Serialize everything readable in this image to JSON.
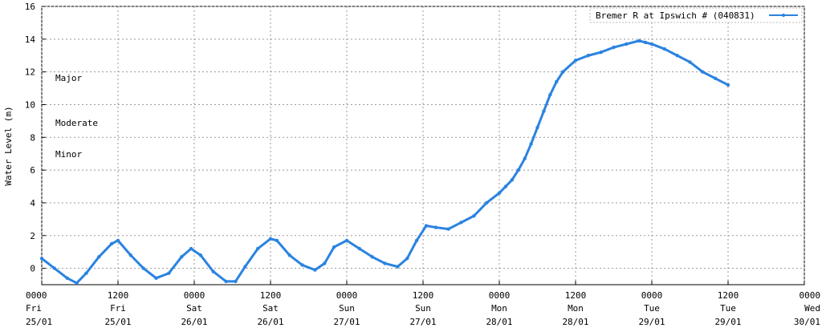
{
  "chart_data": {
    "type": "line",
    "ylabel": "Water Level (m)",
    "xlabel": "",
    "ylim": [
      -1,
      16
    ],
    "yticks": [
      0,
      2,
      4,
      6,
      8,
      10,
      12,
      14,
      16
    ],
    "xlim_hours": [
      0,
      120
    ],
    "grid": true,
    "legend_position": "top-right",
    "series_color": "#2a83e0",
    "xtick_hours": [
      0,
      12,
      24,
      36,
      48,
      60,
      72,
      84,
      96,
      108,
      120
    ],
    "xticks": [
      {
        "time": "0000",
        "day": "Fri",
        "date": "25/01"
      },
      {
        "time": "1200",
        "day": "Fri",
        "date": "25/01"
      },
      {
        "time": "0000",
        "day": "Sat",
        "date": "26/01"
      },
      {
        "time": "1200",
        "day": "Sat",
        "date": "26/01"
      },
      {
        "time": "0000",
        "day": "Sun",
        "date": "27/01"
      },
      {
        "time": "1200",
        "day": "Sun",
        "date": "27/01"
      },
      {
        "time": "0000",
        "day": "Mon",
        "date": "28/01"
      },
      {
        "time": "1200",
        "day": "Mon",
        "date": "28/01"
      },
      {
        "time": "0000",
        "day": "Tue",
        "date": "29/01"
      },
      {
        "time": "1200",
        "day": "Tue",
        "date": "29/01"
      },
      {
        "time": "0000",
        "day": "Wed",
        "date": "30/01"
      }
    ],
    "annotations": [
      "Major",
      "Moderate",
      "Minor"
    ],
    "series": [
      {
        "name": "Bremer R at Ipswich # (040831)",
        "hours": [
          0,
          2,
          4,
          5.5,
          7,
          9,
          11,
          12,
          14,
          16,
          18,
          20,
          22,
          23.5,
          25,
          27,
          29,
          30.5,
          32,
          34,
          36,
          37,
          39,
          41,
          43,
          44.5,
          46,
          48,
          50,
          52,
          54,
          56,
          57.5,
          59,
          60.5,
          62,
          64,
          66,
          68,
          70,
          72,
          73,
          74,
          75,
          76,
          77,
          78,
          79,
          80,
          81,
          82,
          84,
          86,
          88,
          90,
          92,
          94,
          95,
          96,
          98,
          100,
          102,
          104,
          106,
          108
        ],
        "values": [
          0.6,
          0.0,
          -0.6,
          -0.9,
          -0.3,
          0.7,
          1.5,
          1.7,
          0.8,
          0.0,
          -0.6,
          -0.3,
          0.7,
          1.2,
          0.8,
          -0.2,
          -0.8,
          -0.8,
          0.1,
          1.2,
          1.8,
          1.7,
          0.8,
          0.2,
          -0.1,
          0.3,
          1.3,
          1.7,
          1.2,
          0.7,
          0.3,
          0.1,
          0.6,
          1.7,
          2.6,
          2.5,
          2.4,
          2.8,
          3.2,
          4.0,
          4.6,
          5.0,
          5.4,
          6.0,
          6.7,
          7.6,
          8.6,
          9.6,
          10.6,
          11.4,
          12.0,
          12.7,
          13.0,
          13.2,
          13.5,
          13.7,
          13.9,
          13.8,
          13.7,
          13.4,
          13.0,
          12.6,
          12.0,
          11.6,
          11.2
        ]
      }
    ]
  }
}
